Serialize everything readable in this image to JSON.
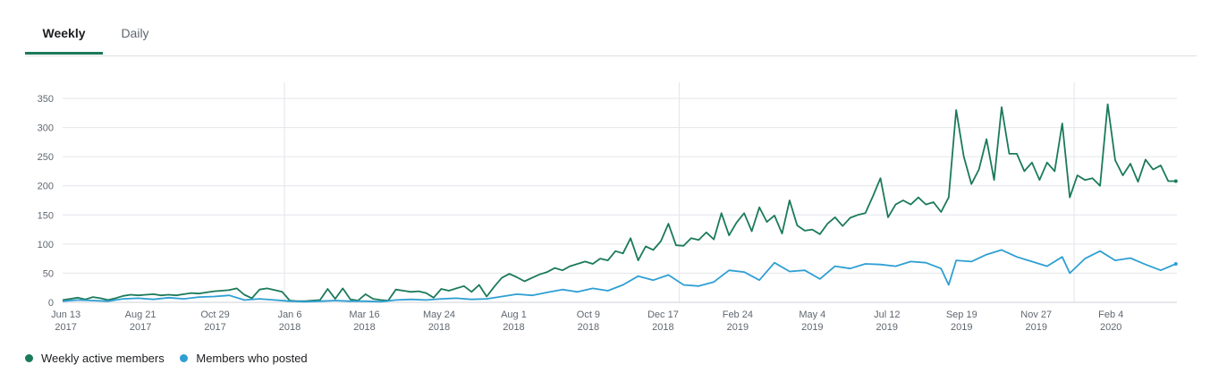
{
  "tabs": [
    {
      "label": "Weekly",
      "active": true
    },
    {
      "label": "Daily",
      "active": false
    }
  ],
  "colors": {
    "weekly_active": "#1b7a5a",
    "posted": "#2f9fd3",
    "grid": "#e4e6eb",
    "axis_text": "#606770",
    "tab_underline": "#1b7a5a"
  },
  "legend": [
    {
      "label": "Weekly active members",
      "color": "#1b7a5a"
    },
    {
      "label": "Members who posted",
      "color": "#2f9fd3"
    }
  ],
  "chart_data": {
    "type": "line",
    "ylim": [
      0,
      350
    ],
    "yticks": [
      "0",
      "50",
      "100",
      "150",
      "200",
      "250",
      "300",
      "350"
    ],
    "xlim": [
      "2017-06-10",
      "2020-04-05"
    ],
    "xticks": [
      {
        "date": "2017-06-13",
        "line1": "Jun 13",
        "line2": "2017"
      },
      {
        "date": "2017-08-21",
        "line1": "Aug 21",
        "line2": "2017"
      },
      {
        "date": "2017-10-29",
        "line1": "Oct 29",
        "line2": "2017"
      },
      {
        "date": "2018-01-06",
        "line1": "Jan 6",
        "line2": "2018"
      },
      {
        "date": "2018-03-16",
        "line1": "Mar 16",
        "line2": "2018"
      },
      {
        "date": "2018-05-24",
        "line1": "May 24",
        "line2": "2018"
      },
      {
        "date": "2018-08-01",
        "line1": "Aug 1",
        "line2": "2018"
      },
      {
        "date": "2018-10-09",
        "line1": "Oct 9",
        "line2": "2018"
      },
      {
        "date": "2018-12-17",
        "line1": "Dec 17",
        "line2": "2018"
      },
      {
        "date": "2019-02-24",
        "line1": "Feb 24",
        "line2": "2019"
      },
      {
        "date": "2019-05-04",
        "line1": "May 4",
        "line2": "2019"
      },
      {
        "date": "2019-07-12",
        "line1": "Jul 12",
        "line2": "2019"
      },
      {
        "date": "2019-09-19",
        "line1": "Sep 19",
        "line2": "2019"
      },
      {
        "date": "2019-11-27",
        "line1": "Nov 27",
        "line2": "2019"
      },
      {
        "date": "2020-02-04",
        "line1": "Feb 4",
        "line2": "2020"
      }
    ],
    "year_lines": [
      "2018-01-01",
      "2019-01-01",
      "2020-01-01"
    ],
    "grid": true,
    "legend_position": "bottom-left",
    "series": [
      {
        "name": "Weekly active members",
        "color": "#1b7a5a",
        "points": [
          [
            "2017-06-10",
            4
          ],
          [
            "2017-06-17",
            6
          ],
          [
            "2017-06-24",
            8
          ],
          [
            "2017-07-01",
            5
          ],
          [
            "2017-07-08",
            9
          ],
          [
            "2017-07-15",
            7
          ],
          [
            "2017-07-22",
            4
          ],
          [
            "2017-07-29",
            7
          ],
          [
            "2017-08-05",
            11
          ],
          [
            "2017-08-12",
            13
          ],
          [
            "2017-08-19",
            12
          ],
          [
            "2017-08-26",
            13
          ],
          [
            "2017-09-02",
            14
          ],
          [
            "2017-09-09",
            12
          ],
          [
            "2017-09-16",
            13
          ],
          [
            "2017-09-23",
            12
          ],
          [
            "2017-09-30",
            14
          ],
          [
            "2017-10-07",
            16
          ],
          [
            "2017-10-14",
            15
          ],
          [
            "2017-10-21",
            17
          ],
          [
            "2017-10-28",
            19
          ],
          [
            "2017-11-04",
            20
          ],
          [
            "2017-11-11",
            21
          ],
          [
            "2017-11-18",
            24
          ],
          [
            "2017-11-25",
            13
          ],
          [
            "2017-12-02",
            7
          ],
          [
            "2017-12-09",
            22
          ],
          [
            "2017-12-16",
            24
          ],
          [
            "2017-12-23",
            21
          ],
          [
            "2017-12-30",
            18
          ],
          [
            "2018-01-06",
            3
          ],
          [
            "2018-01-13",
            2
          ],
          [
            "2018-01-20",
            2
          ],
          [
            "2018-01-27",
            3
          ],
          [
            "2018-02-03",
            4
          ],
          [
            "2018-02-10",
            23
          ],
          [
            "2018-02-17",
            6
          ],
          [
            "2018-02-24",
            24
          ],
          [
            "2018-03-03",
            5
          ],
          [
            "2018-03-10",
            3
          ],
          [
            "2018-03-17",
            14
          ],
          [
            "2018-03-24",
            6
          ],
          [
            "2018-03-31",
            4
          ],
          [
            "2018-04-07",
            3
          ],
          [
            "2018-04-14",
            22
          ],
          [
            "2018-04-21",
            20
          ],
          [
            "2018-04-28",
            18
          ],
          [
            "2018-05-05",
            19
          ],
          [
            "2018-05-12",
            16
          ],
          [
            "2018-05-19",
            8
          ],
          [
            "2018-05-26",
            23
          ],
          [
            "2018-06-02",
            20
          ],
          [
            "2018-06-09",
            24
          ],
          [
            "2018-06-16",
            28
          ],
          [
            "2018-06-23",
            18
          ],
          [
            "2018-06-30",
            30
          ],
          [
            "2018-07-07",
            10
          ],
          [
            "2018-07-14",
            27
          ],
          [
            "2018-07-21",
            42
          ],
          [
            "2018-07-28",
            49
          ],
          [
            "2018-08-04",
            43
          ],
          [
            "2018-08-11",
            36
          ],
          [
            "2018-08-18",
            42
          ],
          [
            "2018-08-25",
            48
          ],
          [
            "2018-09-01",
            52
          ],
          [
            "2018-09-08",
            59
          ],
          [
            "2018-09-15",
            55
          ],
          [
            "2018-09-22",
            62
          ],
          [
            "2018-09-29",
            66
          ],
          [
            "2018-10-06",
            70
          ],
          [
            "2018-10-13",
            66
          ],
          [
            "2018-10-20",
            75
          ],
          [
            "2018-10-27",
            72
          ],
          [
            "2018-11-03",
            88
          ],
          [
            "2018-11-10",
            84
          ],
          [
            "2018-11-17",
            110
          ],
          [
            "2018-11-24",
            72
          ],
          [
            "2018-12-01",
            96
          ],
          [
            "2018-12-08",
            90
          ],
          [
            "2018-12-15",
            105
          ],
          [
            "2018-12-22",
            135
          ],
          [
            "2018-12-29",
            98
          ],
          [
            "2019-01-05",
            97
          ],
          [
            "2019-01-12",
            110
          ],
          [
            "2019-01-19",
            107
          ],
          [
            "2019-01-26",
            120
          ],
          [
            "2019-02-02",
            108
          ],
          [
            "2019-02-09",
            153
          ],
          [
            "2019-02-16",
            115
          ],
          [
            "2019-02-23",
            137
          ],
          [
            "2019-03-02",
            153
          ],
          [
            "2019-03-09",
            122
          ],
          [
            "2019-03-16",
            163
          ],
          [
            "2019-03-23",
            138
          ],
          [
            "2019-03-30",
            149
          ],
          [
            "2019-04-06",
            118
          ],
          [
            "2019-04-13",
            175
          ],
          [
            "2019-04-20",
            132
          ],
          [
            "2019-04-27",
            123
          ],
          [
            "2019-05-04",
            125
          ],
          [
            "2019-05-11",
            117
          ],
          [
            "2019-05-18",
            135
          ],
          [
            "2019-05-25",
            146
          ],
          [
            "2019-06-01",
            131
          ],
          [
            "2019-06-08",
            145
          ],
          [
            "2019-06-15",
            150
          ],
          [
            "2019-06-22",
            153
          ],
          [
            "2019-06-29",
            182
          ],
          [
            "2019-07-06",
            213
          ],
          [
            "2019-07-13",
            146
          ],
          [
            "2019-07-20",
            168
          ],
          [
            "2019-07-27",
            175
          ],
          [
            "2019-08-03",
            168
          ],
          [
            "2019-08-10",
            180
          ],
          [
            "2019-08-17",
            168
          ],
          [
            "2019-08-24",
            172
          ],
          [
            "2019-08-31",
            155
          ],
          [
            "2019-09-07",
            180
          ],
          [
            "2019-09-14",
            330
          ],
          [
            "2019-09-21",
            250
          ],
          [
            "2019-09-28",
            203
          ],
          [
            "2019-10-05",
            228
          ],
          [
            "2019-10-12",
            280
          ],
          [
            "2019-10-19",
            210
          ],
          [
            "2019-10-26",
            335
          ],
          [
            "2019-11-02",
            255
          ],
          [
            "2019-11-09",
            255
          ],
          [
            "2019-11-16",
            225
          ],
          [
            "2019-11-23",
            240
          ],
          [
            "2019-11-30",
            210
          ],
          [
            "2019-12-07",
            240
          ],
          [
            "2019-12-14",
            225
          ],
          [
            "2019-12-21",
            307
          ],
          [
            "2019-12-28",
            180
          ],
          [
            "2020-01-04",
            218
          ],
          [
            "2020-01-11",
            210
          ],
          [
            "2020-01-18",
            213
          ],
          [
            "2020-01-25",
            200
          ],
          [
            "2020-02-01",
            340
          ],
          [
            "2020-02-08",
            244
          ],
          [
            "2020-02-15",
            218
          ],
          [
            "2020-02-22",
            238
          ],
          [
            "2020-02-29",
            207
          ],
          [
            "2020-03-07",
            245
          ],
          [
            "2020-03-14",
            228
          ],
          [
            "2020-03-21",
            235
          ],
          [
            "2020-03-28",
            208
          ],
          [
            "2020-04-04",
            208
          ]
        ]
      },
      {
        "name": "Members who posted",
        "color": "#2f9fd3",
        "points": [
          [
            "2017-06-10",
            2
          ],
          [
            "2017-06-24",
            4
          ],
          [
            "2017-07-08",
            3
          ],
          [
            "2017-07-22",
            2
          ],
          [
            "2017-08-05",
            6
          ],
          [
            "2017-08-19",
            7
          ],
          [
            "2017-09-02",
            5
          ],
          [
            "2017-09-16",
            8
          ],
          [
            "2017-09-30",
            6
          ],
          [
            "2017-10-14",
            9
          ],
          [
            "2017-10-28",
            10
          ],
          [
            "2017-11-11",
            12
          ],
          [
            "2017-11-25",
            4
          ],
          [
            "2017-12-09",
            6
          ],
          [
            "2017-12-23",
            4
          ],
          [
            "2018-01-06",
            2
          ],
          [
            "2018-01-20",
            1
          ],
          [
            "2018-02-03",
            2
          ],
          [
            "2018-02-17",
            3
          ],
          [
            "2018-03-03",
            2
          ],
          [
            "2018-03-17",
            2
          ],
          [
            "2018-03-31",
            1
          ],
          [
            "2018-04-14",
            4
          ],
          [
            "2018-04-28",
            5
          ],
          [
            "2018-05-12",
            4
          ],
          [
            "2018-05-26",
            6
          ],
          [
            "2018-06-09",
            7
          ],
          [
            "2018-06-23",
            5
          ],
          [
            "2018-07-07",
            6
          ],
          [
            "2018-07-21",
            10
          ],
          [
            "2018-08-04",
            14
          ],
          [
            "2018-08-18",
            12
          ],
          [
            "2018-09-01",
            17
          ],
          [
            "2018-09-15",
            22
          ],
          [
            "2018-09-29",
            18
          ],
          [
            "2018-10-13",
            24
          ],
          [
            "2018-10-27",
            20
          ],
          [
            "2018-11-10",
            30
          ],
          [
            "2018-11-24",
            45
          ],
          [
            "2018-12-08",
            38
          ],
          [
            "2018-12-22",
            47
          ],
          [
            "2019-01-05",
            30
          ],
          [
            "2019-01-19",
            28
          ],
          [
            "2019-02-02",
            35
          ],
          [
            "2019-02-16",
            55
          ],
          [
            "2019-03-02",
            52
          ],
          [
            "2019-03-16",
            38
          ],
          [
            "2019-03-30",
            68
          ],
          [
            "2019-04-13",
            53
          ],
          [
            "2019-04-27",
            55
          ],
          [
            "2019-05-11",
            40
          ],
          [
            "2019-05-25",
            62
          ],
          [
            "2019-06-08",
            58
          ],
          [
            "2019-06-22",
            66
          ],
          [
            "2019-07-06",
            65
          ],
          [
            "2019-07-20",
            62
          ],
          [
            "2019-08-03",
            70
          ],
          [
            "2019-08-17",
            68
          ],
          [
            "2019-08-31",
            58
          ],
          [
            "2019-09-07",
            30
          ],
          [
            "2019-09-14",
            72
          ],
          [
            "2019-09-28",
            70
          ],
          [
            "2019-10-12",
            82
          ],
          [
            "2019-10-26",
            90
          ],
          [
            "2019-11-09",
            78
          ],
          [
            "2019-11-23",
            70
          ],
          [
            "2019-12-07",
            62
          ],
          [
            "2019-12-21",
            78
          ],
          [
            "2019-12-28",
            50
          ],
          [
            "2020-01-11",
            75
          ],
          [
            "2020-01-25",
            88
          ],
          [
            "2020-02-08",
            72
          ],
          [
            "2020-02-22",
            76
          ],
          [
            "2020-03-07",
            65
          ],
          [
            "2020-03-21",
            55
          ],
          [
            "2020-04-04",
            66
          ]
        ]
      }
    ]
  }
}
